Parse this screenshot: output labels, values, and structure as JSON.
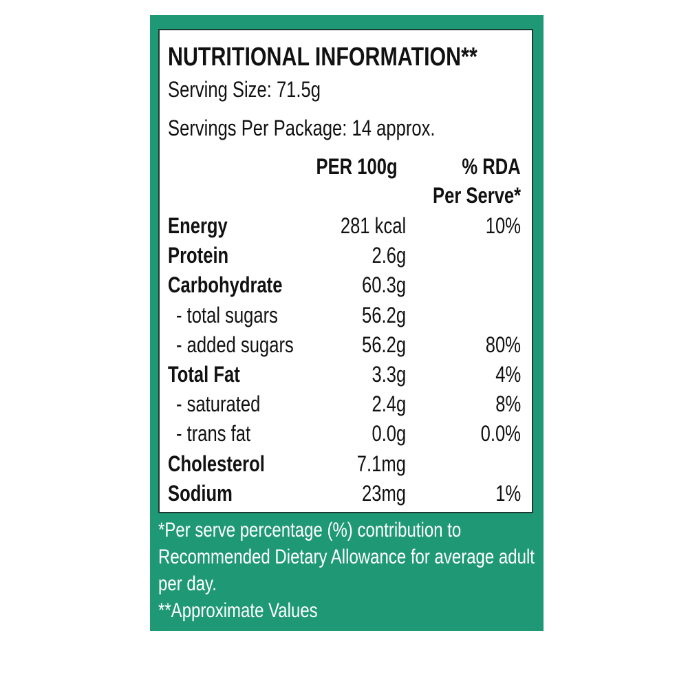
{
  "title": "NUTRITIONAL INFORMATION**",
  "serving_size": "Serving Size: 71.5g",
  "servings_per_package": "Servings Per Package: 14 approx.",
  "table": {
    "header": {
      "per100g": "PER 100g",
      "rda": [
        "% RDA",
        "Per Serve*"
      ]
    },
    "rows": [
      {
        "name": "Energy",
        "per100g": "281 kcal",
        "rda": "10%"
      },
      {
        "name": "Protein",
        "per100g": "2.6g",
        "rda": null
      },
      {
        "name": "Carbohydrate",
        "per100g": "60.3g",
        "rda": null
      },
      {
        "name": "- total sugars",
        "per100g": "56.2g",
        "rda": null
      },
      {
        "name": "- added sugars",
        "per100g": "56.2g",
        "rda": "80%"
      },
      {
        "name": "Total Fat",
        "per100g": "3.3g",
        "rda": "4%"
      },
      {
        "name": "- saturated",
        "per100g": "2.4g",
        "rda": "8%"
      },
      {
        "name": "- trans fat",
        "per100g": "0.0g",
        "rda": "0.0%"
      },
      {
        "name": "Cholesterol",
        "per100g": "7.1mg",
        "rda": null
      },
      {
        "name": "Sodium",
        "per100g": "23mg",
        "rda": "1%"
      }
    ]
  },
  "footnotes": [
    "*Per serve percentage (%) contribution to",
    "Recommended Dietary Allowance for average adult",
    "per day.",
    "**Approximate Values"
  ]
}
